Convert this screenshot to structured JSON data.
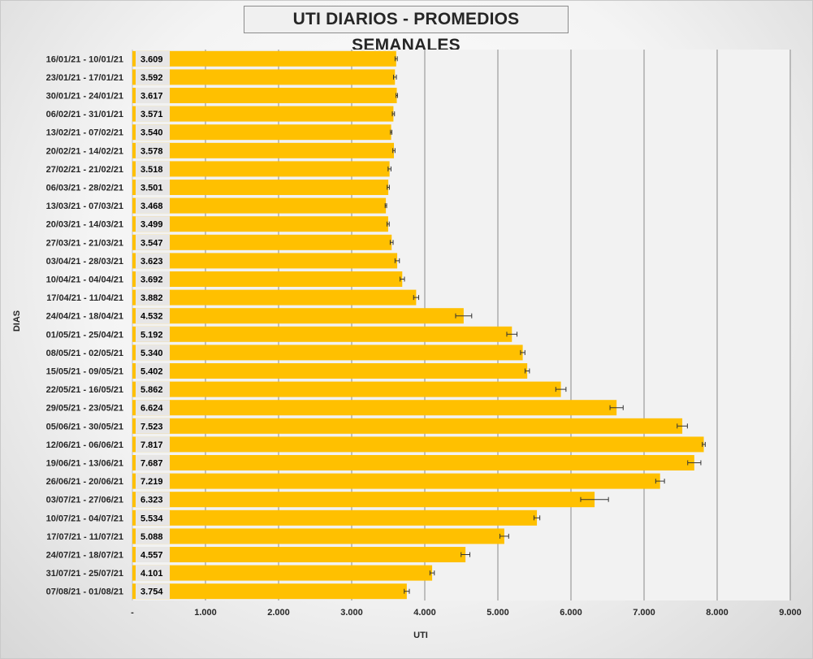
{
  "chart_data": {
    "type": "bar",
    "orientation": "horizontal",
    "title": "UTI DIARIOS - PROMEDIOS SEMANALES",
    "xlabel": "UTI",
    "ylabel": "DIAS",
    "xlim": [
      0,
      9000
    ],
    "xticks": [
      0,
      1000,
      2000,
      3000,
      4000,
      5000,
      6000,
      7000,
      8000,
      9000
    ],
    "xtick_labels": [
      "-",
      "1.000",
      "2.000",
      "3.000",
      "4.000",
      "5.000",
      "6.000",
      "7.000",
      "8.000",
      "9.000"
    ],
    "grid": "vertical",
    "bar_color": "#FFC000",
    "value_label_bg": "#E7E6E6",
    "error_bars": true,
    "categories": [
      "16/01/21 - 10/01/21",
      "23/01/21 - 17/01/21",
      "30/01/21 - 24/01/21",
      "06/02/21 - 31/01/21",
      "13/02/21 - 07/02/21",
      "20/02/21 - 14/02/21",
      "27/02/21 - 21/02/21",
      "06/03/21 - 28/02/21",
      "13/03/21 - 07/03/21",
      "20/03/21 - 14/03/21",
      "27/03/21 - 21/03/21",
      "03/04/21 - 28/03/21",
      "10/04/21 - 04/04/21",
      "17/04/21 - 11/04/21",
      "24/04/21 - 18/04/21",
      "01/05/21 - 25/04/21",
      "08/05/21 - 02/05/21",
      "15/05/21 - 09/05/21",
      "22/05/21 - 16/05/21",
      "29/05/21 - 23/05/21",
      "05/06/21 - 30/05/21",
      "12/06/21 - 06/06/21",
      "19/06/21 - 13/06/21",
      "26/06/21 - 20/06/21",
      "03/07/21 - 27/06/21",
      "10/07/21 - 04/07/21",
      "17/07/21 - 11/07/21",
      "24/07/21 - 18/07/21",
      "31/07/21 - 25/07/21",
      "07/08/21 - 01/08/21"
    ],
    "values": [
      3609,
      3592,
      3617,
      3571,
      3540,
      3578,
      3518,
      3501,
      3468,
      3499,
      3547,
      3623,
      3692,
      3882,
      4532,
      5192,
      5340,
      5402,
      5862,
      6624,
      7523,
      7817,
      7687,
      7219,
      6323,
      5534,
      5088,
      4557,
      4101,
      3754
    ],
    "value_labels": [
      "3.609",
      "3.592",
      "3.617",
      "3.571",
      "3.540",
      "3.578",
      "3.518",
      "3.501",
      "3.468",
      "3.499",
      "3.547",
      "3.623",
      "3.692",
      "3.882",
      "4.532",
      "5.192",
      "5.340",
      "5.402",
      "5.862",
      "6.624",
      "7.523",
      "7.817",
      "7.687",
      "7.219",
      "6.323",
      "5.534",
      "5.088",
      "4.557",
      "4.101",
      "3.754"
    ],
    "errors": [
      15,
      20,
      10,
      15,
      10,
      15,
      20,
      15,
      10,
      15,
      20,
      30,
      30,
      35,
      110,
      70,
      30,
      30,
      70,
      90,
      70,
      20,
      90,
      60,
      190,
      40,
      60,
      60,
      30,
      35
    ]
  }
}
